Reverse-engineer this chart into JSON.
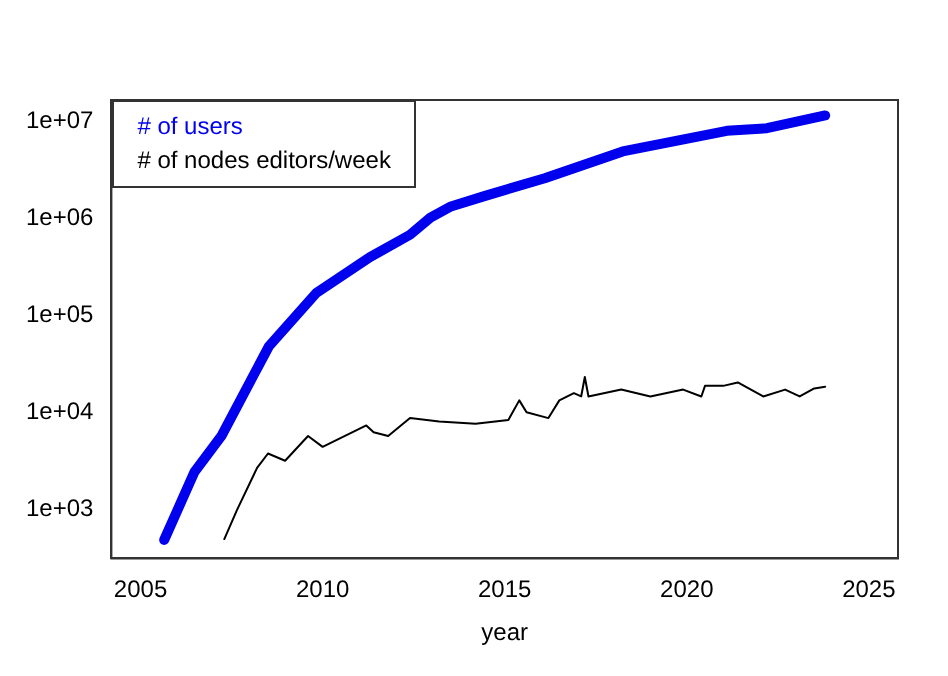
{
  "chart_data": {
    "type": "line",
    "xlabel": "year",
    "log": "y",
    "xlim": [
      2004.2,
      2025.8
    ],
    "xticks": [
      2005,
      2010,
      2015,
      2020,
      2025
    ],
    "ylim": [
      316,
      16600000
    ],
    "yticks": [
      {
        "value": 1000,
        "label": "1e+03"
      },
      {
        "value": 10000,
        "label": "1e+04"
      },
      {
        "value": 100000,
        "label": "1e+05"
      },
      {
        "value": 1000000,
        "label": "1e+06"
      },
      {
        "value": 10000000,
        "label": "1e+07"
      }
    ],
    "grid": false,
    "legend": "top left",
    "marker": "none",
    "series": [
      {
        "name": "# of users",
        "color": "#0000ee",
        "x": [
          2005.65,
          2006.48,
          2007.22,
          2008.52,
          2009.82,
          2011.3,
          2012.4,
          2012.96,
          2013.5,
          2014.44,
          2016.1,
          2018.24,
          2021.1,
          2022.2,
          2023.8
        ],
        "values": [
          490,
          2450,
          5750,
          48000,
          170000,
          400000,
          680000,
          1020000,
          1320000,
          1700000,
          2600000,
          4900000,
          8000000,
          8500000,
          11500000
        ]
      },
      {
        "name": "# of nodes editors/week",
        "color": "#000000",
        "x": [
          2007.3,
          2007.65,
          2008.2,
          2008.5,
          2008.97,
          2009.6,
          2010,
          2010.6,
          2011.2,
          2011.4,
          2011.8,
          2012.4,
          2013.2,
          2014.2,
          2015.1,
          2015.4,
          2015.6,
          2016.2,
          2016.5,
          2016.9,
          2017.1,
          2017.2,
          2017.3,
          2018.2,
          2019,
          2019.9,
          2020.4,
          2020.5,
          2021,
          2021.4,
          2022.1,
          2022.7,
          2023.1,
          2023.5,
          2023.8
        ],
        "values": [
          500,
          1000,
          2700,
          3800,
          3200,
          5750,
          4450,
          5750,
          7400,
          6300,
          5750,
          8800,
          8100,
          7700,
          8400,
          13400,
          10100,
          8800,
          13400,
          15900,
          14700,
          23300,
          14700,
          17300,
          14700,
          17300,
          14700,
          18900,
          18900,
          20500,
          14700,
          17300,
          14700,
          17800,
          18500
        ]
      }
    ]
  }
}
